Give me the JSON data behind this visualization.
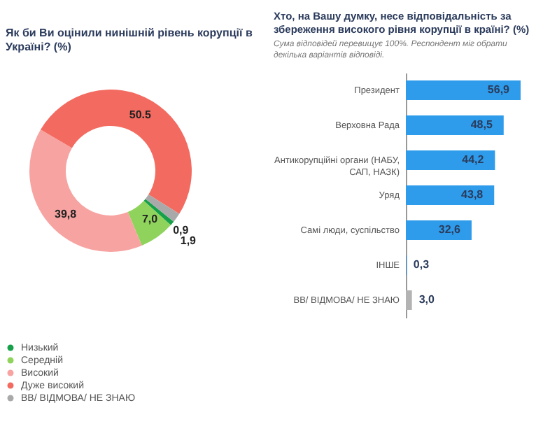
{
  "chart_data": [
    {
      "type": "donut",
      "title": "Як би Ви оцінили нинішній рівень корупції в Україні? (%)",
      "categories": [
        "Низький",
        "Середній",
        "Високий",
        "Дуже високий",
        "ВВ/ ВІДМОВА/ НЕ ЗНАЮ"
      ],
      "values": [
        0.9,
        7.0,
        39.8,
        50.5,
        1.9
      ],
      "colors": [
        "#17a04a",
        "#8fd35c",
        "#f7a3a1",
        "#f36b60",
        "#a9a9a9"
      ],
      "value_labels": [
        "0,9",
        "7,0",
        "39,8",
        "50.5",
        "1,9"
      ],
      "legend": "bottom"
    },
    {
      "type": "bar",
      "orientation": "horizontal",
      "title": "Хто, на Вашу думку, несе відповідальність за збереження високого рівня корупції в країні? (%)",
      "subtitle": "Сума відповідей перевищує 100%. Респондент міг обрати декілька варіантів відповіді.",
      "categories": [
        "Президент",
        "Верховна Рада",
        "Антикорупційні органи (НАБУ, САП, НАЗК)",
        "Уряд",
        "Самі люди, суспільство",
        "ІНШЕ",
        "ВВ/ ВІДМОВА/ НЕ ЗНАЮ"
      ],
      "values": [
        56.9,
        48.5,
        44.2,
        43.8,
        32.6,
        0.3,
        3.0
      ],
      "colors": [
        "#2e9cea",
        "#2e9cea",
        "#2e9cea",
        "#2e9cea",
        "#2e9cea",
        "#2e9cea",
        "#b3b3b3"
      ],
      "value_labels": [
        "56,9",
        "48,5",
        "44,2",
        "43,8",
        "32,6",
        "0,3",
        "3,0"
      ]
    }
  ]
}
